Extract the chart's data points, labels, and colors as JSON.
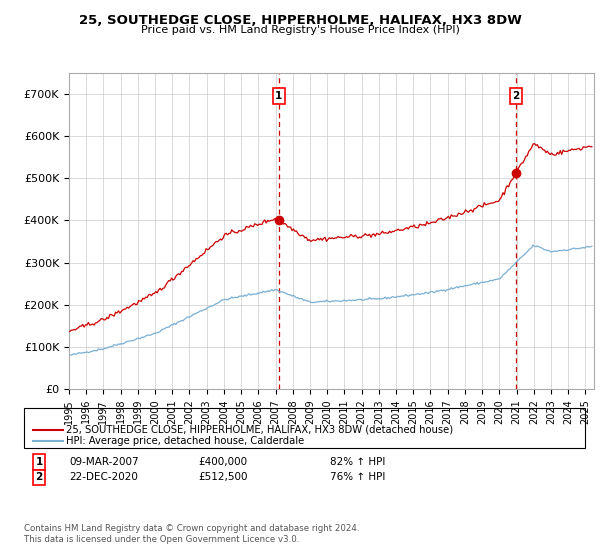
{
  "title": "25, SOUTHEDGE CLOSE, HIPPERHOLME, HALIFAX, HX3 8DW",
  "subtitle": "Price paid vs. HM Land Registry's House Price Index (HPI)",
  "xlim_start": 1995.0,
  "xlim_end": 2025.5,
  "ylim_min": 0,
  "ylim_max": 750000,
  "yticks": [
    0,
    100000,
    200000,
    300000,
    400000,
    500000,
    600000,
    700000
  ],
  "ytick_labels": [
    "£0",
    "£100K",
    "£200K",
    "£300K",
    "£400K",
    "£500K",
    "£600K",
    "£700K"
  ],
  "point1_x": 2007.19,
  "point1_y": 400000,
  "point2_x": 2020.98,
  "point2_y": 512500,
  "legend_line1": "25, SOUTHEDGE CLOSE, HIPPERHOLME, HALIFAX, HX3 8DW (detached house)",
  "legend_line2": "HPI: Average price, detached house, Calderdale",
  "table_row1": [
    "1",
    "09-MAR-2007",
    "£400,000",
    "82% ↑ HPI"
  ],
  "table_row2": [
    "2",
    "22-DEC-2020",
    "£512,500",
    "76% ↑ HPI"
  ],
  "footnote": "Contains HM Land Registry data © Crown copyright and database right 2024.\nThis data is licensed under the Open Government Licence v3.0.",
  "line_color_red": "#cc0000",
  "line_color_blue": "#7ab0d4",
  "background_color": "#ffffff",
  "grid_color": "#cccccc"
}
